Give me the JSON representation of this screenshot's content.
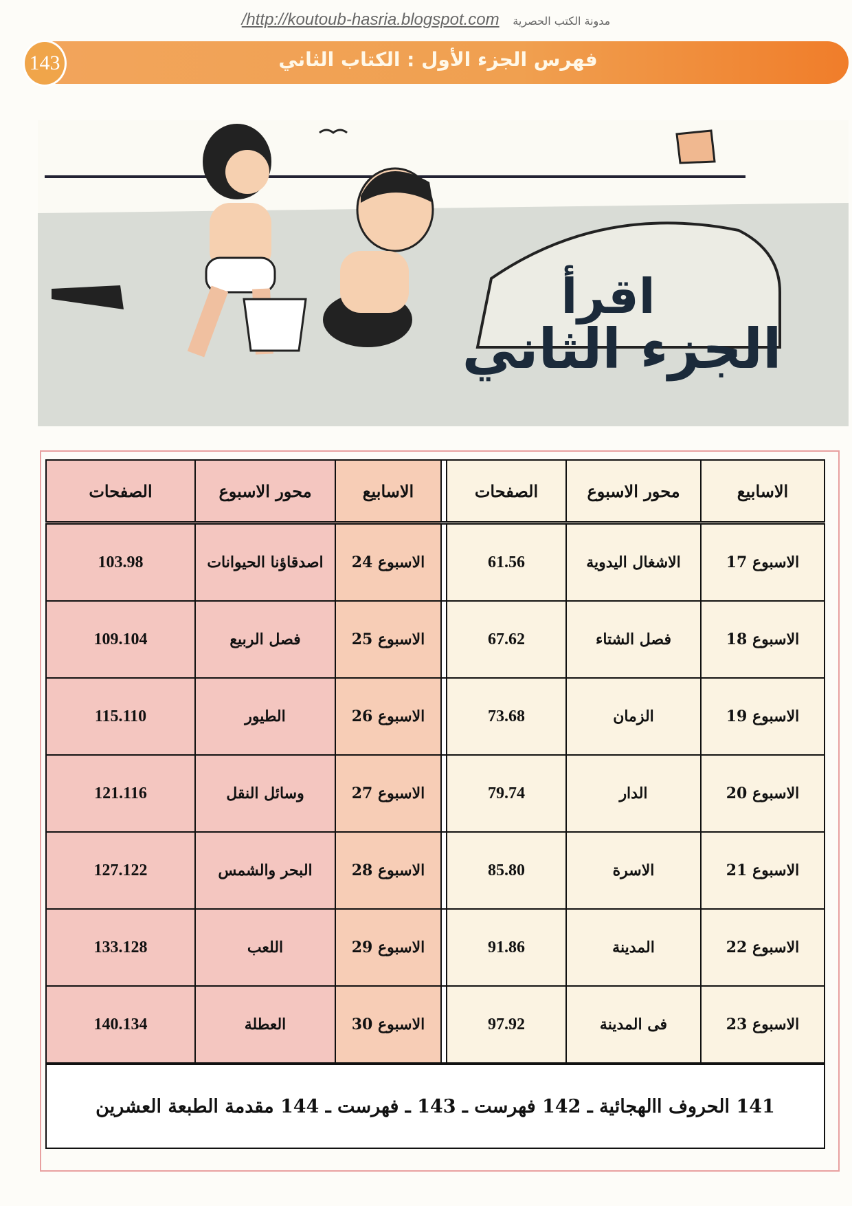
{
  "header": {
    "url": "/http://koutoub-hasria.blogspot.com",
    "blog_name": "مدونة الكتب الحصرية",
    "title": "فهرس الجزء الأول : الكتاب الثاني",
    "page_number": "143",
    "banner_color": "#f0a050"
  },
  "illustration": {
    "lettering": "اقرأ الجزء الثاني",
    "scene": "children-on-beach"
  },
  "table": {
    "headers": [
      "الاسابيع",
      "محور الاسبوع",
      "الصفحات",
      "الاسابيع",
      "محور الاسبوع",
      "الصفحات"
    ],
    "rows": [
      {
        "week_r": "الاسبوع 17",
        "theme_r": "الاشغال اليدوية",
        "pages_r": "61.56",
        "week_l": "الاسبوع 24",
        "theme_l": "اصدقاؤنا الحيوانات",
        "pages_l": "103.98"
      },
      {
        "week_r": "الاسبوع 18",
        "theme_r": "فصل الشتاء",
        "pages_r": "67.62",
        "week_l": "الاسبوع 25",
        "theme_l": "فصل الربيع",
        "pages_l": "109.104"
      },
      {
        "week_r": "الاسبوع 19",
        "theme_r": "الزمان",
        "pages_r": "73.68",
        "week_l": "الاسبوع 26",
        "theme_l": "الطيور",
        "pages_l": "115.110"
      },
      {
        "week_r": "الاسبوع 20",
        "theme_r": "الدار",
        "pages_r": "79.74",
        "week_l": "الاسبوع 27",
        "theme_l": "وسائل النقل",
        "pages_l": "121.116"
      },
      {
        "week_r": "الاسبوع 21",
        "theme_r": "الاسرة",
        "pages_r": "85.80",
        "week_l": "الاسبوع 28",
        "theme_l": "البحر والشمس",
        "pages_l": "127.122"
      },
      {
        "week_r": "الاسبوع 22",
        "theme_r": "المدينة",
        "pages_r": "91.86",
        "week_l": "الاسبوع 29",
        "theme_l": "اللعب",
        "pages_l": "133.128"
      },
      {
        "week_r": "الاسبوع 23",
        "theme_r": "فى المدينة",
        "pages_r": "97.92",
        "week_l": "الاسبوع 30",
        "theme_l": "العطلة",
        "pages_l": "140.134"
      }
    ],
    "footer": "141 الحروف االهجائية ـ 142 فهرست ـ 143 ـ فهرست ـ 144 مقدمة الطبعة العشرين"
  }
}
